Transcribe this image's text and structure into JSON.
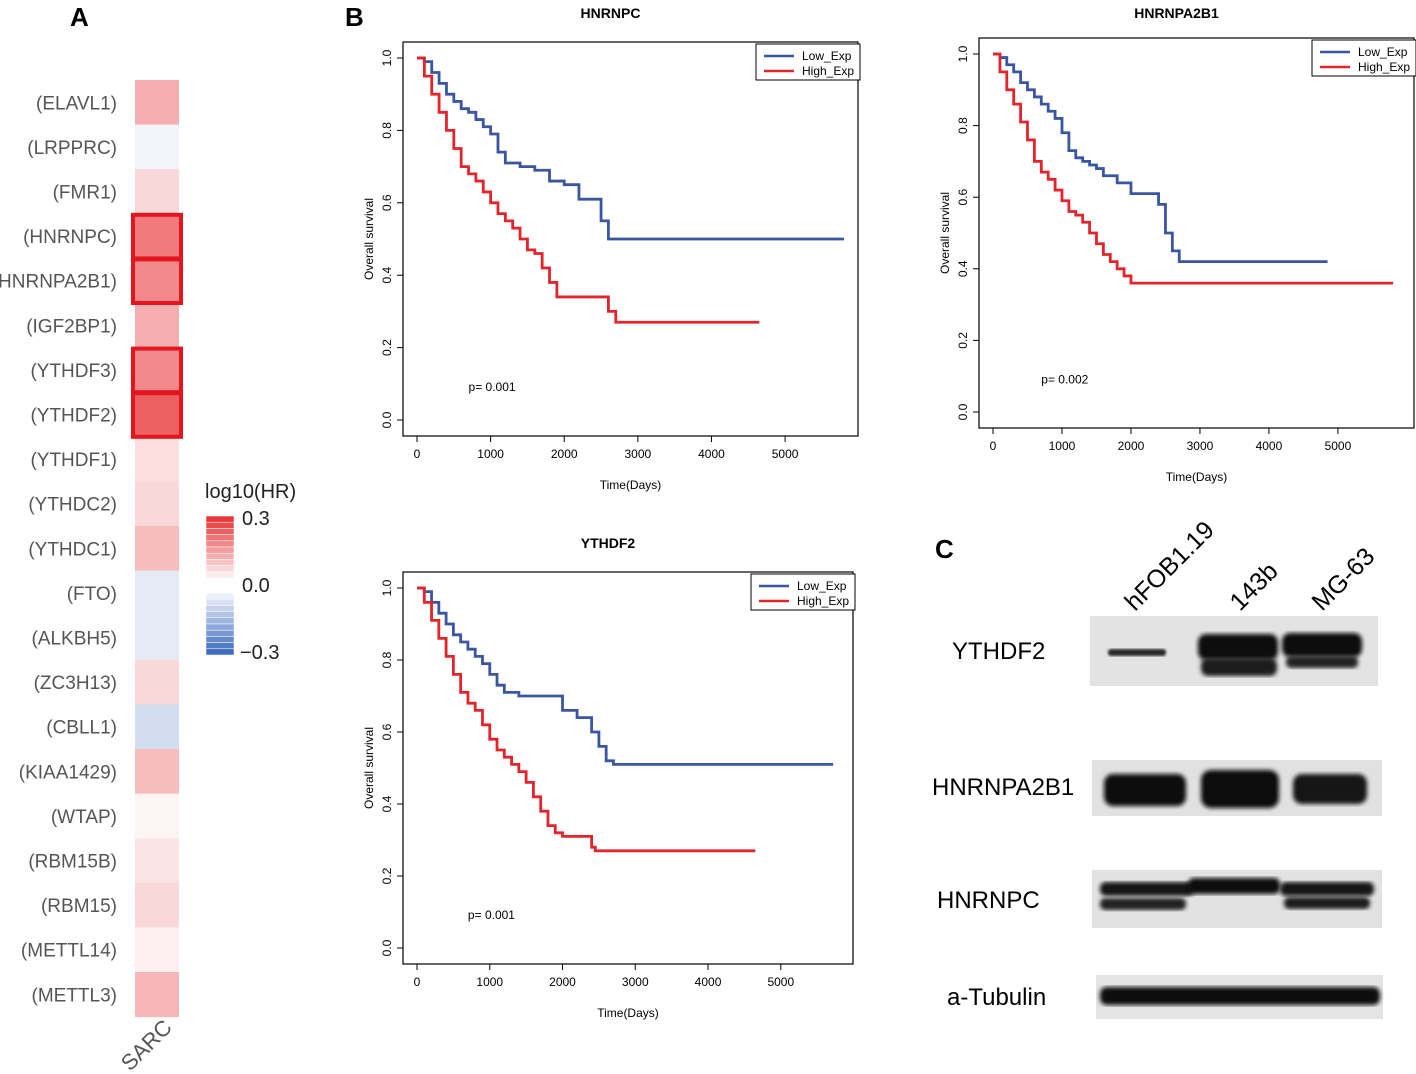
{
  "panels": {
    "a": "A",
    "b": "B",
    "c": "C"
  },
  "heatmap": {
    "column_label": "SARC",
    "legend_title": "log10(HR)",
    "legend_ticks": [
      "0.3",
      "0.0",
      "−0.3"
    ],
    "colors": {
      "pos": "#e8383b",
      "neg": "#3f6cbf",
      "highlight": "#e3161f"
    },
    "rows": [
      {
        "gene": "(ELAVL1)",
        "value": 0.12
      },
      {
        "gene": "(LRPPRC)",
        "value": -0.02
      },
      {
        "gene": "(FMR1)",
        "value": 0.06
      },
      {
        "gene": "(HNRNPC)",
        "value": 0.2,
        "highlight": true
      },
      {
        "gene": "(HNRNPA2B1)",
        "value": 0.18,
        "highlight": true
      },
      {
        "gene": "(IGF2BP1)",
        "value": 0.12
      },
      {
        "gene": "(YTHDF3)",
        "value": 0.18,
        "highlight": true
      },
      {
        "gene": "(YTHDF2)",
        "value": 0.24,
        "highlight": true
      },
      {
        "gene": "(YTHDF1)",
        "value": 0.05
      },
      {
        "gene": "(YTHDC2)",
        "value": 0.06
      },
      {
        "gene": "(YTHDC1)",
        "value": 0.1
      },
      {
        "gene": "(FTO)",
        "value": -0.04
      },
      {
        "gene": "(ALKBH5)",
        "value": -0.04
      },
      {
        "gene": "(ZC3H13)",
        "value": 0.06
      },
      {
        "gene": "(CBLL1)",
        "value": -0.07
      },
      {
        "gene": "(KIAA1429)",
        "value": 0.1
      },
      {
        "gene": "(WTAP)",
        "value": 0.015
      },
      {
        "gene": "(RBM15B)",
        "value": 0.04
      },
      {
        "gene": "(RBM15)",
        "value": 0.06
      },
      {
        "gene": "(METTL14)",
        "value": 0.025
      },
      {
        "gene": "(METTL3)",
        "value": 0.11
      }
    ]
  },
  "chart_data": [
    {
      "type": "line",
      "title": "HNRNPC",
      "xlabel": "Time(Days)",
      "ylabel": "Overall survival",
      "xlim": [
        0,
        5800
      ],
      "ylim": [
        0,
        1.0
      ],
      "xticks": [
        "0",
        "1000",
        "2000",
        "3000",
        "4000",
        "5000"
      ],
      "yticks": [
        "0.0",
        "0.2",
        "0.4",
        "0.6",
        "0.8",
        "1.0"
      ],
      "legend": "top-right",
      "pvalue": "p= 0.001",
      "series": [
        {
          "name": "Low_Exp",
          "color": "#3a55a4",
          "x": [
            0,
            100,
            200,
            300,
            400,
            500,
            600,
            700,
            800,
            900,
            1000,
            1100,
            1200,
            1300,
            1400,
            1500,
            1600,
            1800,
            2000,
            2200,
            2400,
            2500,
            2600,
            5800
          ],
          "y": [
            1.0,
            0.99,
            0.96,
            0.93,
            0.9,
            0.88,
            0.86,
            0.85,
            0.83,
            0.81,
            0.79,
            0.74,
            0.71,
            0.71,
            0.7,
            0.7,
            0.69,
            0.66,
            0.65,
            0.61,
            0.61,
            0.55,
            0.5,
            0.5
          ]
        },
        {
          "name": "High_Exp",
          "color": "#e3242b",
          "x": [
            0,
            100,
            200,
            300,
            400,
            500,
            600,
            700,
            800,
            900,
            1000,
            1100,
            1200,
            1300,
            1400,
            1500,
            1600,
            1700,
            1800,
            1900,
            2000,
            2600,
            2700,
            4650
          ],
          "y": [
            1.0,
            0.95,
            0.9,
            0.85,
            0.8,
            0.75,
            0.7,
            0.68,
            0.66,
            0.63,
            0.6,
            0.57,
            0.55,
            0.53,
            0.5,
            0.47,
            0.46,
            0.42,
            0.38,
            0.34,
            0.34,
            0.3,
            0.27,
            0.27
          ]
        }
      ]
    },
    {
      "type": "line",
      "title": "HNRNPA2B1",
      "xlabel": "Time(Days)",
      "ylabel": "Overall survival",
      "xlim": [
        0,
        5900
      ],
      "ylim": [
        0,
        1.0
      ],
      "xticks": [
        "0",
        "1000",
        "2000",
        "3000",
        "4000",
        "5000"
      ],
      "yticks": [
        "0.0",
        "0.2",
        "0.4",
        "0.6",
        "0.8",
        "1.0"
      ],
      "legend": "top-right",
      "pvalue": "p= 0.002",
      "series": [
        {
          "name": "Low_Exp",
          "color": "#3a55a4",
          "x": [
            0,
            100,
            200,
            300,
            400,
            500,
            600,
            700,
            800,
            900,
            1000,
            1100,
            1200,
            1300,
            1400,
            1500,
            1600,
            1800,
            2000,
            2200,
            2400,
            2500,
            2600,
            2700,
            4850
          ],
          "y": [
            1.0,
            0.99,
            0.97,
            0.95,
            0.92,
            0.9,
            0.88,
            0.86,
            0.84,
            0.82,
            0.78,
            0.73,
            0.71,
            0.7,
            0.69,
            0.68,
            0.66,
            0.64,
            0.61,
            0.61,
            0.58,
            0.5,
            0.45,
            0.42,
            0.42
          ]
        },
        {
          "name": "High_Exp",
          "color": "#e3242b",
          "x": [
            0,
            100,
            200,
            300,
            400,
            500,
            600,
            700,
            800,
            900,
            1000,
            1100,
            1200,
            1300,
            1400,
            1500,
            1600,
            1700,
            1800,
            1900,
            2000,
            5800
          ],
          "y": [
            1.0,
            0.95,
            0.9,
            0.86,
            0.81,
            0.76,
            0.7,
            0.67,
            0.65,
            0.62,
            0.59,
            0.56,
            0.55,
            0.53,
            0.5,
            0.47,
            0.44,
            0.42,
            0.4,
            0.38,
            0.36,
            0.36
          ]
        }
      ]
    },
    {
      "type": "line",
      "title": "YTHDF2",
      "xlabel": "Time(Days)",
      "ylabel": "Overall survival",
      "xlim": [
        0,
        5800
      ],
      "ylim": [
        0,
        1.0
      ],
      "xticks": [
        "0",
        "1000",
        "2000",
        "3000",
        "4000",
        "5000"
      ],
      "yticks": [
        "0.0",
        "0.2",
        "0.4",
        "0.6",
        "0.8",
        "1.0"
      ],
      "legend": "top-right",
      "pvalue": "p= 0.001",
      "series": [
        {
          "name": "Low_Exp",
          "color": "#3a55a4",
          "x": [
            0,
            100,
            200,
            300,
            400,
            500,
            600,
            700,
            800,
            900,
            1000,
            1100,
            1200,
            1400,
            1600,
            1900,
            2000,
            2200,
            2400,
            2500,
            2600,
            2700,
            5720
          ],
          "y": [
            1.0,
            0.99,
            0.96,
            0.93,
            0.9,
            0.87,
            0.85,
            0.83,
            0.81,
            0.79,
            0.76,
            0.73,
            0.71,
            0.7,
            0.7,
            0.7,
            0.66,
            0.64,
            0.6,
            0.56,
            0.52,
            0.51,
            0.51
          ]
        },
        {
          "name": "High_Exp",
          "color": "#e3242b",
          "x": [
            0,
            100,
            200,
            300,
            400,
            500,
            600,
            700,
            800,
            900,
            1000,
            1100,
            1200,
            1300,
            1400,
            1500,
            1600,
            1700,
            1800,
            1900,
            2000,
            2400,
            2450,
            4650
          ],
          "y": [
            1.0,
            0.96,
            0.91,
            0.86,
            0.81,
            0.76,
            0.71,
            0.68,
            0.66,
            0.62,
            0.58,
            0.55,
            0.53,
            0.51,
            0.49,
            0.46,
            0.42,
            0.38,
            0.34,
            0.32,
            0.31,
            0.28,
            0.27,
            0.27
          ]
        }
      ]
    }
  ],
  "blot": {
    "lanes": [
      "hFOB1.19",
      "143b",
      "MG-63"
    ],
    "proteins": [
      "YTHDF2",
      "HNRNPA2B1",
      "HNRNPC",
      "a-Tubulin"
    ]
  }
}
